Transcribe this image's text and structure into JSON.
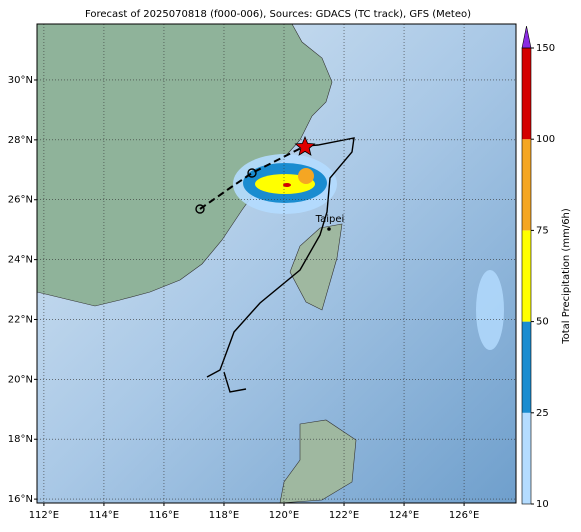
{
  "title": "Forecast of 2025070818 (f000-006), Sources: GDACS (TC track), GFS (Meteo)",
  "map": {
    "xlim": [
      111.77,
      127.73
    ],
    "ylim": [
      15.87,
      31.87
    ],
    "xticks": [
      {
        "value": 112,
        "label": "112°E"
      },
      {
        "value": 114,
        "label": "114°E"
      },
      {
        "value": 116,
        "label": "116°E"
      },
      {
        "value": 118,
        "label": "118°E"
      },
      {
        "value": 120,
        "label": "120°E"
      },
      {
        "value": 122,
        "label": "122°E"
      },
      {
        "value": 124,
        "label": "124°E"
      },
      {
        "value": 126,
        "label": "126°E"
      }
    ],
    "yticks": [
      {
        "value": 16,
        "label": "16°N"
      },
      {
        "value": 18,
        "label": "18°N"
      },
      {
        "value": 20,
        "label": "20°N"
      },
      {
        "value": 22,
        "label": "22°N"
      },
      {
        "value": 24,
        "label": "24°N"
      },
      {
        "value": 26,
        "label": "26°N"
      },
      {
        "value": 28,
        "label": "28°N"
      },
      {
        "value": 30,
        "label": "30°N"
      }
    ],
    "city": "Taipei"
  },
  "colorbar": {
    "label": "Total Precipitation (mm/6h)",
    "ticks": [
      10,
      25,
      50,
      75,
      100,
      150
    ],
    "colors": [
      "#b4dcff",
      "#1a8cd0",
      "#ffff00",
      "#f5a623",
      "#d40000"
    ],
    "extend_color": "#8a2be2"
  }
}
